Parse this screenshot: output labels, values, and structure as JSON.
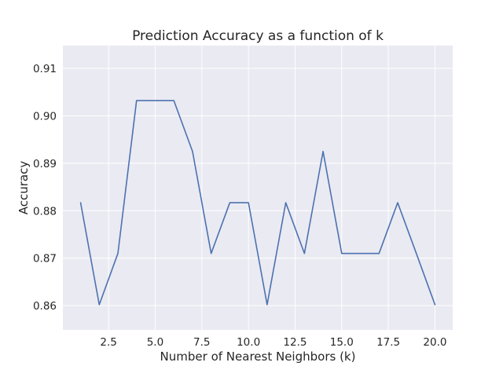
{
  "chart_data": {
    "type": "line",
    "title": "Prediction Accuracy as a function of k",
    "xlabel": "Number of Nearest Neighbors (k)",
    "ylabel": "Accuracy",
    "xlim": [
      0.05,
      20.95
    ],
    "ylim": [
      0.8549,
      0.9148
    ],
    "xticks": [
      2.5,
      5.0,
      7.5,
      10.0,
      12.5,
      15.0,
      17.5,
      20.0
    ],
    "xtick_labels": [
      "2.5",
      "5.0",
      "7.5",
      "10.0",
      "12.5",
      "15.0",
      "17.5",
      "20.0"
    ],
    "yticks": [
      0.86,
      0.87,
      0.88,
      0.89,
      0.9,
      0.91
    ],
    "ytick_labels": [
      "0.86",
      "0.87",
      "0.88",
      "0.89",
      "0.90",
      "0.91"
    ],
    "grid": true,
    "series": [
      {
        "color": "#4c72b0",
        "x": [
          1,
          2,
          3,
          4,
          5,
          6,
          7,
          8,
          9,
          10,
          11,
          12,
          13,
          14,
          15,
          16,
          17,
          18,
          19,
          20
        ],
        "values": [
          0.8817,
          0.8602,
          0.871,
          0.9032,
          0.9032,
          0.9032,
          0.8925,
          0.871,
          0.8817,
          0.8817,
          0.8602,
          0.8817,
          0.871,
          0.8925,
          0.871,
          0.871,
          0.871,
          0.8817,
          0.871,
          0.8602
        ]
      }
    ],
    "colors": {
      "plot_background": "#eaeaf2",
      "grid": "#ffffff",
      "text": "#262626"
    }
  }
}
